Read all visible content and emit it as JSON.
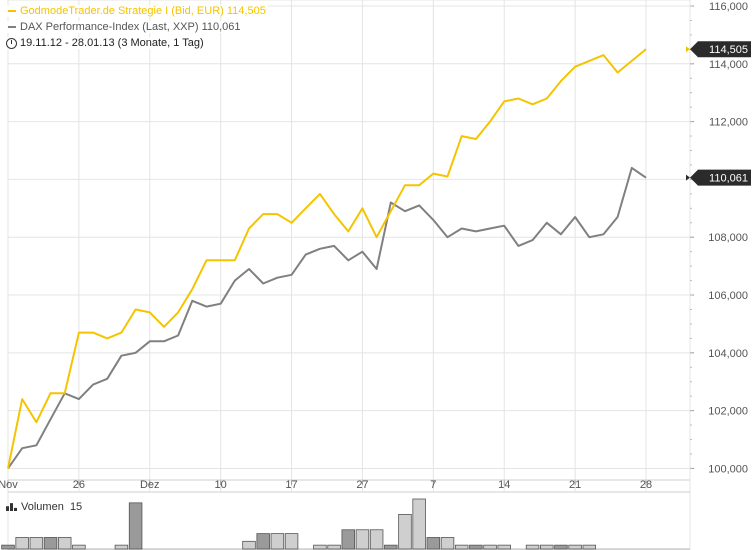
{
  "legend": {
    "series1": "GodmodeTrader.de Strategie I (Bid, EUR)",
    "series1_value": "114,505",
    "series2": "DAX Performance-Index (Last, XXP)",
    "series2_value": "110,061",
    "period": "19.11.12 - 28.01.13 (3 Monate, 1 Tag)"
  },
  "volume": {
    "label": "Volumen",
    "value": "15"
  },
  "colors": {
    "series1": "#f5c400",
    "series2": "#808080",
    "grid": "#e4e4e4"
  },
  "chart_data": {
    "type": "line",
    "yticks": [
      "116,000",
      "114,000",
      "112,000",
      "110,000",
      "108,000",
      "106,000",
      "104,000",
      "102,000",
      "100,000"
    ],
    "ylim": [
      99.6,
      116.0
    ],
    "xticks": [
      {
        "label": "Nov",
        "i": 0
      },
      {
        "label": "26",
        "i": 5
      },
      {
        "label": "Dez",
        "i": 10
      },
      {
        "label": "10",
        "i": 15
      },
      {
        "label": "17",
        "i": 20
      },
      {
        "label": "27",
        "i": 25
      },
      {
        "label": "7",
        "i": 30
      },
      {
        "label": "14",
        "i": 35
      },
      {
        "label": "21",
        "i": 40
      },
      {
        "label": "28",
        "i": 45
      }
    ],
    "series": [
      {
        "name": "GodmodeTrader.de Strategie I (Bid, EUR)",
        "last_label": "114,505",
        "values": [
          100.0,
          102.4,
          101.6,
          102.6,
          102.6,
          104.7,
          104.7,
          104.5,
          104.7,
          105.5,
          105.4,
          104.9,
          105.4,
          106.2,
          107.2,
          107.2,
          107.2,
          108.3,
          108.8,
          108.8,
          108.5,
          109.0,
          109.5,
          108.8,
          108.2,
          109.0,
          108.0,
          108.9,
          109.8,
          109.8,
          110.2,
          110.1,
          111.5,
          111.4,
          112.0,
          112.7,
          112.8,
          112.6,
          112.8,
          113.4,
          113.9,
          114.1,
          114.3,
          113.7,
          114.1,
          114.505
        ]
      },
      {
        "name": "DAX Performance-Index (Last, XXP)",
        "last_label": "110,061",
        "values": [
          100.0,
          100.7,
          100.8,
          101.7,
          102.6,
          102.4,
          102.9,
          103.1,
          103.9,
          104.0,
          104.4,
          104.4,
          104.6,
          105.8,
          105.6,
          105.7,
          106.5,
          106.9,
          106.4,
          106.6,
          106.7,
          107.4,
          107.6,
          107.7,
          107.2,
          107.5,
          106.9,
          109.2,
          108.9,
          109.1,
          108.6,
          108.0,
          108.3,
          108.2,
          108.3,
          108.4,
          107.7,
          107.9,
          108.5,
          108.1,
          108.7,
          108.0,
          108.1,
          108.7,
          110.4,
          110.061
        ]
      }
    ],
    "volume": [
      1,
      3,
      3,
      3,
      3,
      1,
      0,
      0,
      1,
      12,
      0,
      0,
      0,
      0,
      0,
      0,
      0,
      2,
      4,
      4,
      4,
      0,
      1,
      1,
      5,
      5,
      5,
      1,
      9,
      13,
      3,
      3,
      1,
      1,
      1,
      1,
      0,
      1,
      1,
      1,
      1,
      1,
      0,
      0,
      0,
      0
    ]
  }
}
